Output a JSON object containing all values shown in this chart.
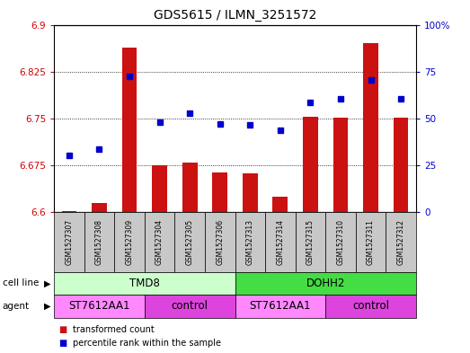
{
  "title": "GDS5615 / ILMN_3251572",
  "samples": [
    "GSM1527307",
    "GSM1527308",
    "GSM1527309",
    "GSM1527304",
    "GSM1527305",
    "GSM1527306",
    "GSM1527313",
    "GSM1527314",
    "GSM1527315",
    "GSM1527310",
    "GSM1527311",
    "GSM1527312"
  ],
  "red_values": [
    6.601,
    6.614,
    6.863,
    6.674,
    6.679,
    6.663,
    6.662,
    6.624,
    6.752,
    6.751,
    6.87,
    6.751
  ],
  "blue_values": [
    0.3,
    0.335,
    0.725,
    0.48,
    0.525,
    0.47,
    0.465,
    0.435,
    0.585,
    0.605,
    0.705,
    0.605
  ],
  "ymin": 6.6,
  "ymax": 6.9,
  "y2min": 0,
  "y2max": 100,
  "yticks": [
    6.6,
    6.675,
    6.75,
    6.825,
    6.9
  ],
  "ytick_labels": [
    "6.6",
    "6.675",
    "6.75",
    "6.825",
    "6.9"
  ],
  "y2ticks": [
    0,
    25,
    50,
    75,
    100
  ],
  "y2tick_labels": [
    "0",
    "25",
    "50",
    "75",
    "100%"
  ],
  "cell_line_groups": [
    {
      "label": "TMD8",
      "start": 0,
      "end": 6,
      "color": "#ccffcc"
    },
    {
      "label": "DOHH2",
      "start": 6,
      "end": 12,
      "color": "#44dd44"
    }
  ],
  "agent_groups": [
    {
      "label": "ST7612AA1",
      "start": 0,
      "end": 3,
      "color": "#ff88ff"
    },
    {
      "label": "control",
      "start": 3,
      "end": 6,
      "color": "#dd44dd"
    },
    {
      "label": "ST7612AA1",
      "start": 6,
      "end": 9,
      "color": "#ff88ff"
    },
    {
      "label": "control",
      "start": 9,
      "end": 12,
      "color": "#dd44dd"
    }
  ],
  "bar_color": "#cc1111",
  "dot_color": "#0000cc",
  "bar_baseline": 6.6,
  "sample_box_color": "#c8c8c8",
  "legend_items": [
    {
      "color": "#cc1111",
      "label": "transformed count"
    },
    {
      "color": "#0000cc",
      "label": "percentile rank within the sample"
    }
  ],
  "fig_width": 5.23,
  "fig_height": 3.93,
  "dpi": 100
}
